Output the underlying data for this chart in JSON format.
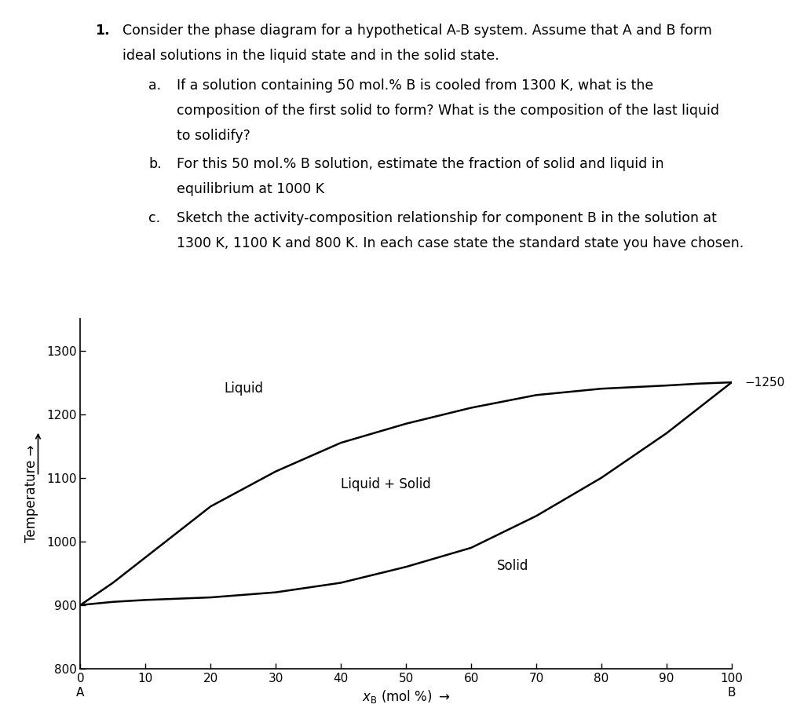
{
  "liquidus_x": [
    0,
    5,
    10,
    20,
    30,
    40,
    50,
    60,
    70,
    80,
    90,
    95,
    100
  ],
  "liquidus_y": [
    900,
    935,
    975,
    1055,
    1110,
    1155,
    1185,
    1210,
    1230,
    1240,
    1245,
    1248,
    1250
  ],
  "solidus_x": [
    0,
    5,
    10,
    20,
    30,
    40,
    50,
    60,
    70,
    80,
    90,
    95,
    100
  ],
  "solidus_y": [
    900,
    905,
    908,
    912,
    920,
    935,
    960,
    990,
    1040,
    1100,
    1170,
    1210,
    1250
  ],
  "xlim": [
    0,
    100
  ],
  "ylim": [
    800,
    1350
  ],
  "yticks": [
    800,
    900,
    1000,
    1100,
    1200,
    1300
  ],
  "xticks": [
    0,
    10,
    20,
    30,
    40,
    50,
    60,
    70,
    80,
    90,
    100
  ],
  "xlabel_sub": "B",
  "xlabel_base": "x",
  "xlabel_arrow": " (mol %) →",
  "ylabel": "Temperature →",
  "x_label_A": "A",
  "x_label_B": "B",
  "label_liquid": "Liquid",
  "label_liquid_solid": "Liquid + Solid",
  "label_solid": "Solid",
  "annotation_1250": "−1250",
  "background_color": "#ffffff",
  "line_color": "#000000",
  "text_color": "#000000",
  "figure_width": 10.24,
  "figure_height": 9.16,
  "line1_bold": "1.",
  "line1_text": "  Consider the phase diagram for a hypothetical A-B system. Assume that A and B form",
  "line2_text": "   ideal solutions in the liquid state and in the solid state.",
  "item_a_label": "a.",
  "item_a_text1": "  If a solution containing 50 mol.% B is cooled from 1300 K, what is the",
  "item_a_text2": "     composition of the first solid to form? What is the composition of the last liquid",
  "item_a_text3": "     to solidify?",
  "item_b_label": "b.",
  "item_b_text1": "  For this 50 mol.% B solution, estimate the fraction of solid and liquid in",
  "item_b_text2": "     equilibrium at 1000 K",
  "item_c_label": "c.",
  "item_c_text1": "  Sketch the activity-composition relationship for component B in the solution at",
  "item_c_text2": "     1300 K, 1100 K and 800 K. In each case state the standard state you have chosen."
}
